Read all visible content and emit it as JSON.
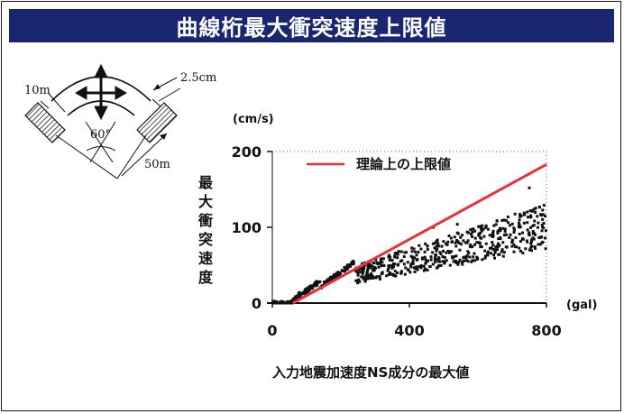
{
  "title": "曲線桁最大衝突速度上限値",
  "colors": {
    "title_bg": "#1a2670",
    "title_text": "#ffffff",
    "theory_line": "#e8303a",
    "points": "#111111"
  },
  "diagram": {
    "width_label": "10m",
    "gap_label": "2.5cm",
    "angle_label": "60°",
    "radius_label": "50m",
    "icons": [
      "four-way-arrow-icon"
    ]
  },
  "chart_data": {
    "type": "scatter",
    "title": "",
    "xlabel": "入力地震加速度NS成分の最大値",
    "ylabel": "最大衝突速度",
    "x_unit": "(gal)",
    "y_unit": "(cm/s)",
    "xlim": [
      0,
      800
    ],
    "ylim": [
      0,
      200
    ],
    "x_ticks": [
      "0",
      "400",
      "800"
    ],
    "y_ticks": [
      "0",
      "100",
      "200"
    ],
    "legend": {
      "position": "top",
      "entries": [
        "理論上の上限値"
      ]
    },
    "series": [
      {
        "name": "理論上の上限値",
        "kind": "line",
        "x": [
          60,
          800
        ],
        "y": [
          0,
          183
        ]
      },
      {
        "kind": "scatter",
        "cloud": [
          {
            "x": [
              0,
              55
            ],
            "y": [
              0,
              0
            ]
          },
          {
            "x": [
              55,
              80
            ],
            "y": [
              0,
              14
            ]
          },
          {
            "x": [
              80,
              140
            ],
            "y": [
              10,
              30
            ]
          },
          {
            "x": [
              140,
              240
            ],
            "y": [
              22,
              55
            ]
          },
          {
            "x": [
              240,
              800
            ],
            "y": [
              40,
              107
            ]
          }
        ],
        "outliers": [
          [
            750,
            152
          ],
          [
            470,
            100
          ],
          [
            540,
            104
          ]
        ]
      }
    ]
  }
}
